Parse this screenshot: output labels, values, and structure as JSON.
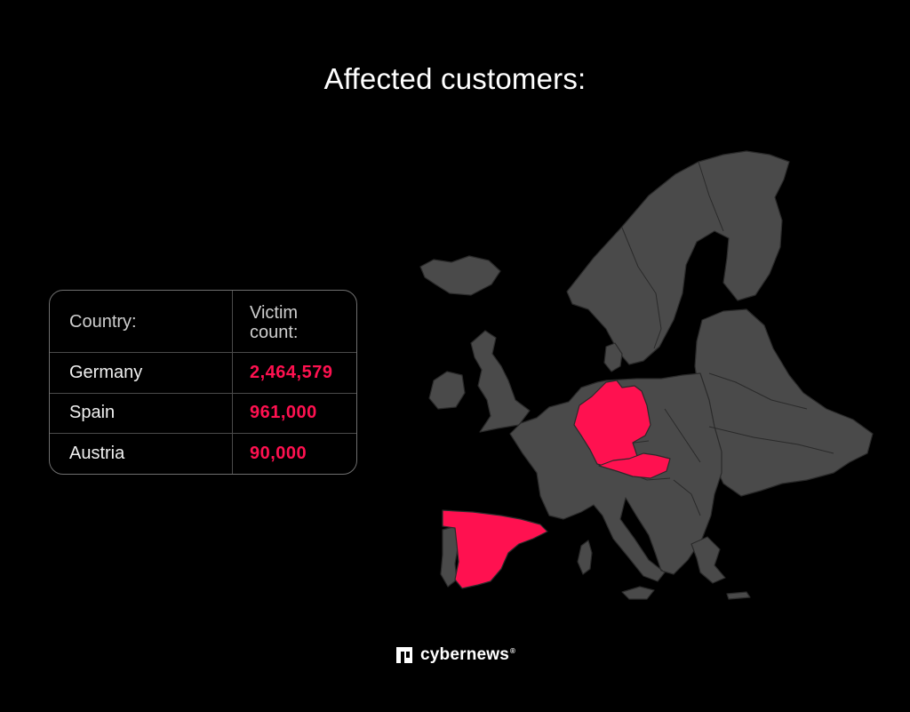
{
  "title": "Affected customers:",
  "table": {
    "headers": [
      "Country:",
      "Victim\ncount:"
    ],
    "rows": [
      {
        "country": "Germany",
        "count": "2,464,579"
      },
      {
        "country": "Spain",
        "count": "961,000"
      },
      {
        "country": "Austria",
        "count": "90,000"
      }
    ]
  },
  "map": {
    "highlighted_regions": [
      "Germany",
      "Spain",
      "Austria"
    ],
    "highlight_color": "#ff1150",
    "base_color": "#4a4a4a",
    "border_color": "#2a2a2a"
  },
  "brand": {
    "name": "cybernews",
    "registered_mark": "®",
    "icon": "cybernews-logo-icon"
  }
}
